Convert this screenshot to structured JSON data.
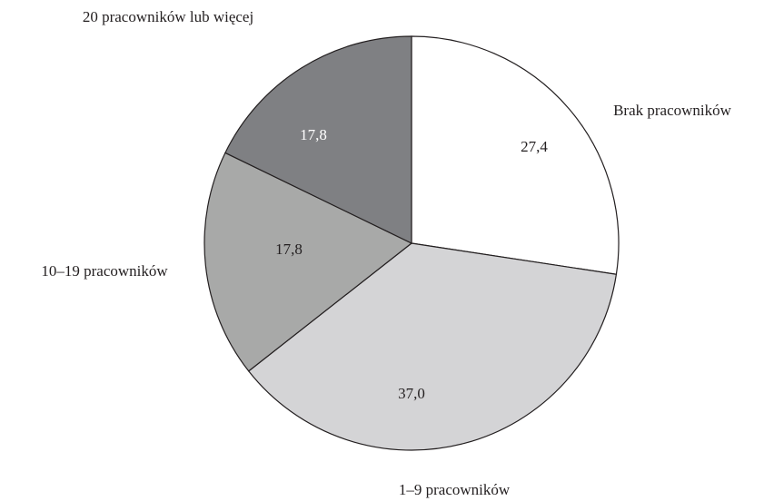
{
  "chart_data": {
    "type": "pie",
    "categories": [
      "Brak pracowników",
      "1–9 pracowników",
      "10–19 pracowników",
      "20 pracowników lub więcej"
    ],
    "values": [
      27.4,
      37.0,
      17.8,
      17.8
    ],
    "value_labels": [
      "27,4",
      "37,0",
      "17,8",
      "17,8"
    ],
    "colors": [
      "#ffffff",
      "#d4d4d6",
      "#a8a9a8",
      "#7f8083"
    ],
    "value_label_colors": [
      "#231f20",
      "#231f20",
      "#231f20",
      "#ffffff"
    ],
    "start_angle": 0,
    "direction": "clockwise"
  }
}
